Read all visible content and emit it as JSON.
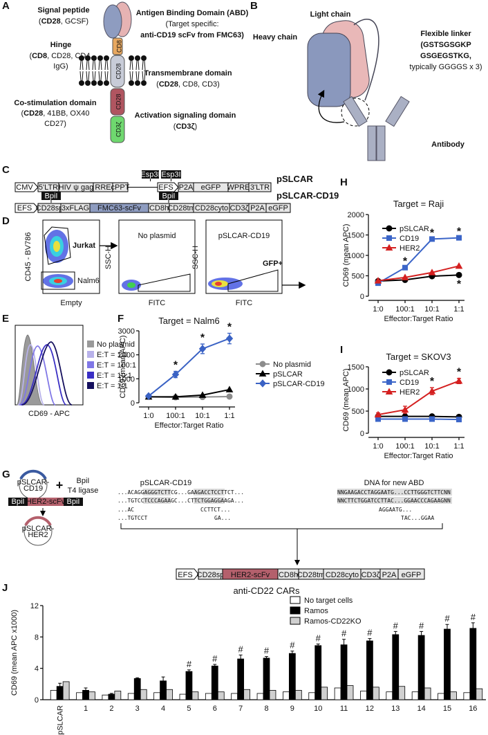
{
  "panel_labels": [
    "A",
    "B",
    "C",
    "D",
    "E",
    "F",
    "G",
    "H",
    "I",
    "J"
  ],
  "panel_a": {
    "signal_peptide": {
      "title": "Signal peptide",
      "detail": [
        "(",
        "CD28",
        ", GCSF)"
      ]
    },
    "hinge": {
      "title": "Hinge",
      "detail": [
        "(",
        "CD8",
        ", CD28, CD4,"
      ],
      "detail2": "IgG)"
    },
    "costim": {
      "title": "Co-stimulation domain",
      "detail": [
        "(",
        "CD28",
        ", 41BB, OX40"
      ],
      "detail2": "CD27)"
    },
    "abd": {
      "title": "Antigen Binding Domain (ABD)",
      "detail": "(Target specific:",
      "detail2": "anti-CD19 scFv from FMC63)"
    },
    "tm": {
      "title": "Transmembrane domain",
      "detail": [
        "(",
        "CD28",
        ", CD8, CD3)"
      ]
    },
    "activation": {
      "title": "Activation signaling domain",
      "detail": [
        "(",
        "CD3ζ",
        ")"
      ]
    },
    "domains": [
      "CD8",
      "CD28",
      "CD28",
      "CD3ζ"
    ]
  },
  "panel_b": {
    "light_chain": "Light chain",
    "heavy_chain": "Heavy chain",
    "linker": [
      "Flexible linker",
      "(GSTSGSGKP",
      "GSGEGSTKG,",
      "typically GGGGS x 3)"
    ],
    "antibody": "Antibody"
  },
  "panel_c": {
    "vector1": {
      "name": "pSLCAR",
      "elements": [
        "CMV",
        "5'LTR",
        "HIV ψ gag",
        "RRE",
        "cPPT",
        "EFS",
        "P2A",
        "eGFP",
        "WPRE",
        "3'LTR"
      ],
      "sites": [
        "Esp3I",
        "Esp3I"
      ]
    },
    "vector2": {
      "name": "pSLCAR-CD19",
      "elements": [
        "EFS",
        "CD28sp",
        "3xFLAG",
        "FMC63-scFv",
        "CD8h",
        "CD28tm",
        "CD28cyto",
        "CD3ζ",
        "P2A",
        "eGFP"
      ],
      "sites": [
        "BpiI",
        "BpiI"
      ]
    }
  },
  "panel_d": {
    "plot1": {
      "y_label": "CD45 - BV786",
      "x_label": "Empty",
      "gates": [
        "Jurkat",
        "Nalm6"
      ]
    },
    "plot2": {
      "title": "No plasmid",
      "y_label": "SSC-H",
      "x_label": "FITC"
    },
    "plot3": {
      "title": "pSLCAR-CD19",
      "y_label": "SSC-H",
      "x_label": "FITC",
      "gate": "GFP+"
    }
  },
  "panel_e": {
    "x_label": "CD69 - APC",
    "legend": [
      {
        "name": "No plasmid",
        "color": "#9a9a9a"
      },
      {
        "name": "E:T = 1:0",
        "color": "#b8b2ea"
      },
      {
        "name": "E:T = 100:1",
        "color": "#8077e6"
      },
      {
        "name": "E:T = 10:1",
        "color": "#3a2fc4"
      },
      {
        "name": "E:T = 1:1",
        "color": "#15105e"
      }
    ]
  },
  "panel_g": {
    "plasmid1": [
      "pSLCAR-",
      "CD19"
    ],
    "plus": "+",
    "enzyme": [
      "BpiI",
      "T4 ligase"
    ],
    "insert": [
      "BpiI",
      "HER2-scFv",
      "BpiI"
    ],
    "plasmid2": [
      "pSLCAR-",
      "HER2"
    ],
    "left_title": "pSLCAR-CD19",
    "right_title": "DNA for new ABD",
    "left_seq": [
      "...ACAGGAGGGTCTTCG...GAAGACCTCCTTCT...",
      "...TGTCCTCCCAGAAGC...CTTCTGGAGGAAGA...",
      "...AC",
      "CCTTCT...",
      "...TGTCCT",
      "GA..."
    ],
    "right_seq": [
      "NNGAAGACCTAGGAATG...CCTTGGGTCTTCNN",
      "NNCTTCTGGATCCTTAC...GGAACCCAGAAGNN",
      "AGGAATG...",
      "TAC...GGAA"
    ],
    "construct": [
      "EFS",
      "CD28sp",
      "HER2-scFv",
      "CD8h",
      "CD28tm",
      "CD28cyto",
      "CD3ζ",
      "P2A",
      "eGFP"
    ]
  },
  "chart_data": [
    {
      "type": "line",
      "title": "Target = Nalm6",
      "x_label": "Effector:Target Ratio",
      "y_label": "CD69 (mean APC)",
      "categories": [
        "1:0",
        "100:1",
        "10:1",
        "1:1"
      ],
      "ylim": [
        0,
        3000
      ],
      "yticks": [
        0,
        1000,
        2000,
        3000
      ],
      "series": [
        {
          "name": "No plasmid",
          "color": "#8c8c8c",
          "marker": "circle",
          "values": [
            250,
            230,
            240,
            260
          ]
        },
        {
          "name": "pSLCAR",
          "color": "#000000",
          "marker": "triangle",
          "values": [
            250,
            250,
            320,
            550
          ]
        },
        {
          "name": "pSLCAR-CD19",
          "color": "#3a62c4",
          "marker": "diamond",
          "values": [
            280,
            1180,
            2250,
            2680
          ],
          "errors": [
            40,
            130,
            200,
            220
          ],
          "annotations": [
            null,
            "*",
            "*",
            "*"
          ]
        }
      ]
    },
    {
      "type": "line",
      "title": "Target = Raji",
      "x_label": "Effector:Target Ratio",
      "y_label": "CD69 (mean APC)",
      "categories": [
        "1:0",
        "100:1",
        "10:1",
        "1:1"
      ],
      "ylim": [
        0,
        2000
      ],
      "yticks": [
        0,
        500,
        1000,
        1500,
        2000
      ],
      "series": [
        {
          "name": "pSLCAR",
          "color": "#000000",
          "marker": "circle",
          "values": [
            370,
            400,
            490,
            520
          ],
          "annotations": [
            null,
            null,
            null,
            "*"
          ]
        },
        {
          "name": "CD19",
          "color": "#3b65c8",
          "marker": "square",
          "values": [
            320,
            700,
            1400,
            1430
          ],
          "annotations": [
            null,
            "*",
            "*",
            "*"
          ]
        },
        {
          "name": "HER2",
          "color": "#d42020",
          "marker": "triangle",
          "values": [
            380,
            460,
            580,
            740
          ]
        }
      ]
    },
    {
      "type": "line",
      "title": "Target = SKOV3",
      "x_label": "Effector:Target Ratio",
      "y_label": "CD69 (mean APC)",
      "categories": [
        "1:0",
        "100:1",
        "10:1",
        "1:1"
      ],
      "ylim": [
        0,
        1500
      ],
      "yticks": [
        0,
        500,
        1000,
        1500
      ],
      "series": [
        {
          "name": "pSLCAR",
          "color": "#000000",
          "marker": "circle",
          "values": [
            380,
            380,
            380,
            370
          ]
        },
        {
          "name": "CD19",
          "color": "#3b65c8",
          "marker": "square",
          "values": [
            320,
            320,
            320,
            310
          ]
        },
        {
          "name": "HER2",
          "color": "#d42020",
          "marker": "triangle",
          "values": [
            420,
            530,
            950,
            1180
          ],
          "errors": [
            40,
            80,
            80,
            60
          ],
          "annotations": [
            null,
            null,
            "*",
            "*"
          ]
        }
      ]
    },
    {
      "type": "bar",
      "title": "anti-CD22 CARs",
      "y_label": "CD69 (mean APC x1000)",
      "categories": [
        "pSLCAR",
        "1",
        "2",
        "3",
        "4",
        "5",
        "6",
        "7",
        "8",
        "9",
        "10",
        "11",
        "12",
        "13",
        "14",
        "15",
        "16"
      ],
      "ylim": [
        0,
        12
      ],
      "yticks": [
        0,
        4,
        8,
        12
      ],
      "series": [
        {
          "name": "No target cells",
          "color": "#ffffff",
          "values": [
            1.2,
            0.9,
            0.6,
            0.8,
            0.9,
            0.7,
            0.8,
            0.8,
            0.8,
            1.0,
            0.9,
            1.5,
            1.1,
            1.0,
            1.0,
            0.8,
            0.9
          ]
        },
        {
          "name": "Ramos",
          "color": "#000000",
          "values": [
            1.7,
            1.2,
            0.7,
            2.7,
            2.4,
            3.6,
            4.3,
            5.2,
            5.3,
            5.9,
            6.9,
            7.0,
            7.5,
            8.3,
            8.2,
            9.0,
            9.1
          ],
          "errors": [
            0.4,
            0.3,
            0.1,
            0.1,
            0.5,
            0.2,
            0.2,
            0.5,
            0.2,
            0.3,
            0.2,
            0.7,
            0.3,
            0.4,
            0.5,
            0.6,
            0.7
          ],
          "annotations": [
            null,
            null,
            null,
            null,
            null,
            "#",
            "#",
            "#",
            "#",
            "#",
            "#",
            "#",
            "#",
            "#",
            "#",
            "#",
            "#"
          ]
        },
        {
          "name": "Ramos-CD22KO",
          "color": "#d0d0d0",
          "values": [
            2.3,
            1.0,
            1.1,
            1.3,
            1.3,
            1.0,
            1.0,
            1.3,
            1.2,
            1.2,
            1.6,
            1.8,
            1.6,
            1.7,
            1.5,
            1.0,
            1.4
          ]
        }
      ]
    }
  ]
}
